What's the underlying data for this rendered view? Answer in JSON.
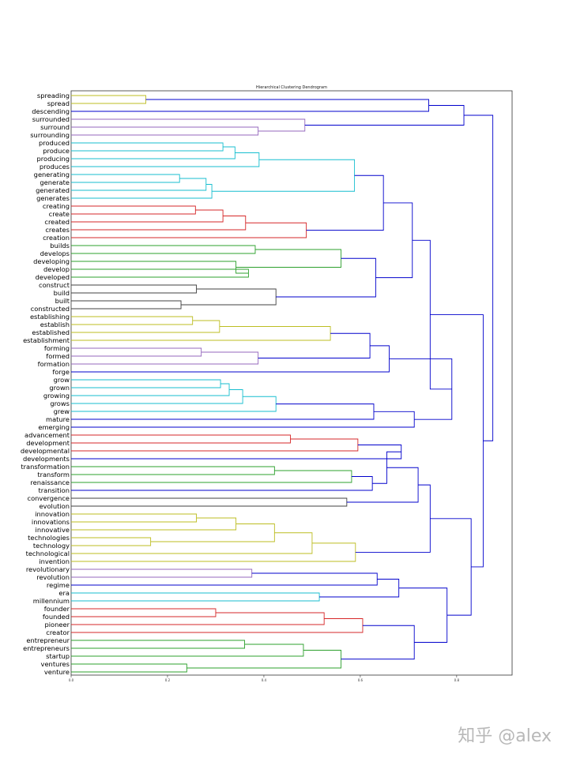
{
  "chart_data": {
    "type": "dendrogram",
    "title": "Hierarchical Clustering Dendrogram",
    "orientation": "left",
    "xlim": [
      0.0,
      0.915
    ],
    "xticks": [
      "0.0",
      "0.2",
      "0.4",
      "0.6",
      "0.8"
    ],
    "xtick_values": [
      0.0,
      0.2,
      0.4,
      0.6,
      0.8
    ],
    "leaves": [
      "spreading",
      "spread",
      "descending",
      "surrounded",
      "surround",
      "surrounding",
      "produced",
      "produce",
      "producing",
      "produces",
      "generating",
      "generate",
      "generated",
      "generates",
      "creating",
      "create",
      "created",
      "creates",
      "creation",
      "builds",
      "develops",
      "developing",
      "develop",
      "developed",
      "construct",
      "build",
      "built",
      "constructed",
      "establishing",
      "establish",
      "established",
      "establishment",
      "forming",
      "formed",
      "formation",
      "forge",
      "grow",
      "grown",
      "growing",
      "grows",
      "grew",
      "mature",
      "emerging",
      "advancement",
      "development",
      "developmental",
      "developments",
      "transformation",
      "transform",
      "renaissance",
      "transition",
      "convergence",
      "evolution",
      "innovation",
      "innovations",
      "innovative",
      "technologies",
      "technology",
      "technological",
      "invention",
      "revolutionary",
      "revolution",
      "regime",
      "era",
      "millennium",
      "founder",
      "founded",
      "pioneer",
      "creator",
      "entrepreneur",
      "entrepreneurs",
      "startup",
      "ventures",
      "venture"
    ],
    "merges": [
      {
        "a": "L:spreading",
        "b": "L:spread",
        "h": 0.155,
        "c": "#bcbd22"
      },
      {
        "a": "L:surround",
        "b": "L:surrounding",
        "h": 0.388,
        "c": "#9467bd"
      },
      {
        "a": "L:surrounded",
        "b": "M:1",
        "h": 0.485,
        "c": "#9467bd"
      },
      {
        "a": "L:produced",
        "b": "L:produce",
        "h": 0.315,
        "c": "#17becf"
      },
      {
        "a": "M:3",
        "b": "L:producing",
        "h": 0.34,
        "c": "#17becf"
      },
      {
        "a": "M:4",
        "b": "L:produces",
        "h": 0.39,
        "c": "#17becf"
      },
      {
        "a": "L:generating",
        "b": "L:generate",
        "h": 0.225,
        "c": "#17becf"
      },
      {
        "a": "M:6",
        "b": "L:generated",
        "h": 0.28,
        "c": "#17becf"
      },
      {
        "a": "M:7",
        "b": "L:generates",
        "h": 0.292,
        "c": "#17becf"
      },
      {
        "a": "M:5",
        "b": "M:8",
        "h": 0.588,
        "c": "#17becf"
      },
      {
        "a": "L:creating",
        "b": "L:create",
        "h": 0.258,
        "c": "#d62728"
      },
      {
        "a": "M:10",
        "b": "L:created",
        "h": 0.315,
        "c": "#d62728"
      },
      {
        "a": "M:11",
        "b": "L:creates",
        "h": 0.362,
        "c": "#d62728"
      },
      {
        "a": "M:12",
        "b": "L:creation",
        "h": 0.488,
        "c": "#d62728"
      },
      {
        "a": "M:9",
        "b": "M:13",
        "h": 0.648,
        "c": "#0000cc"
      },
      {
        "a": "L:develop",
        "b": "L:developed",
        "h": 0.368,
        "c": "#2ca02c"
      },
      {
        "a": "L:developing",
        "b": "M:15",
        "h": 0.342,
        "c": "#2ca02c"
      },
      {
        "a": "L:builds",
        "b": "L:develops",
        "h": 0.382,
        "c": "#2ca02c"
      },
      {
        "a": "M:17",
        "b": "M:16",
        "h": 0.56,
        "c": "#2ca02c"
      },
      {
        "a": "L:built",
        "b": "L:constructed",
        "h": 0.228,
        "c": "#404040"
      },
      {
        "a": "L:construct",
        "b": "L:build",
        "h": 0.26,
        "c": "#404040"
      },
      {
        "a": "M:20",
        "b": "M:19",
        "h": 0.425,
        "c": "#404040"
      },
      {
        "a": "M:18",
        "b": "M:21",
        "h": 0.632,
        "c": "#0000cc"
      },
      {
        "a": "M:14",
        "b": "M:22",
        "h": 0.708,
        "c": "#0000cc"
      },
      {
        "a": "L:establishing",
        "b": "L:establish",
        "h": 0.252,
        "c": "#bcbd22"
      },
      {
        "a": "M:24",
        "b": "L:established",
        "h": 0.308,
        "c": "#bcbd22"
      },
      {
        "a": "M:25",
        "b": "L:establishment",
        "h": 0.538,
        "c": "#bcbd22"
      },
      {
        "a": "L:forming",
        "b": "L:formed",
        "h": 0.27,
        "c": "#9467bd"
      },
      {
        "a": "M:27",
        "b": "L:formation",
        "h": 0.388,
        "c": "#9467bd"
      },
      {
        "a": "M:26",
        "b": "M:28",
        "h": 0.62,
        "c": "#0000cc"
      },
      {
        "a": "M:29",
        "b": "L:forge",
        "h": 0.66,
        "c": "#0000cc"
      },
      {
        "a": "L:grow",
        "b": "L:grown",
        "h": 0.31,
        "c": "#17becf"
      },
      {
        "a": "M:31",
        "b": "L:growing",
        "h": 0.328,
        "c": "#17becf"
      },
      {
        "a": "M:32",
        "b": "L:grows",
        "h": 0.356,
        "c": "#17becf"
      },
      {
        "a": "M:33",
        "b": "L:grew",
        "h": 0.425,
        "c": "#17becf"
      },
      {
        "a": "M:34",
        "b": "L:mature",
        "h": 0.628,
        "c": "#0000cc"
      },
      {
        "a": "M:35",
        "b": "L:emerging",
        "h": 0.712,
        "c": "#0000cc"
      },
      {
        "a": "M:30",
        "b": "M:36",
        "h": 0.79,
        "c": "#0000cc"
      },
      {
        "a": "M:23",
        "b": "M:37",
        "h": 0.745,
        "c": "#0000cc"
      },
      {
        "a": "L:advancement",
        "b": "L:development",
        "h": 0.455,
        "c": "#d62728"
      },
      {
        "a": "M:39",
        "b": "L:developmental",
        "h": 0.595,
        "c": "#d62728"
      },
      {
        "a": "M:40",
        "b": "L:developments",
        "h": 0.685,
        "c": "#0000cc"
      },
      {
        "a": "L:transformation",
        "b": "L:transform",
        "h": 0.422,
        "c": "#2ca02c"
      },
      {
        "a": "M:42",
        "b": "L:renaissance",
        "h": 0.582,
        "c": "#2ca02c"
      },
      {
        "a": "M:43",
        "b": "L:transition",
        "h": 0.625,
        "c": "#0000cc"
      },
      {
        "a": "M:44",
        "b": "M:41",
        "h": 0.655,
        "c": "#0000cc"
      },
      {
        "a": "L:convergence",
        "b": "L:evolution",
        "h": 0.572,
        "c": "#404040"
      },
      {
        "a": "M:45",
        "b": "M:46",
        "h": 0.72,
        "c": "#0000cc"
      },
      {
        "a": "L:innovation",
        "b": "L:innovations",
        "h": 0.26,
        "c": "#bcbd22"
      },
      {
        "a": "M:48",
        "b": "L:innovative",
        "h": 0.342,
        "c": "#bcbd22"
      },
      {
        "a": "L:technologies",
        "b": "L:technology",
        "h": 0.165,
        "c": "#bcbd22"
      },
      {
        "a": "M:49",
        "b": "M:50",
        "h": 0.422,
        "c": "#bcbd22"
      },
      {
        "a": "M:51",
        "b": "L:technological",
        "h": 0.5,
        "c": "#bcbd22"
      },
      {
        "a": "M:52",
        "b": "L:invention",
        "h": 0.59,
        "c": "#bcbd22"
      },
      {
        "a": "M:47",
        "b": "M:53",
        "h": 0.745,
        "c": "#0000cc"
      },
      {
        "a": "L:revolutionary",
        "b": "L:revolution",
        "h": 0.375,
        "c": "#9467bd"
      },
      {
        "a": "M:55",
        "b": "L:regime",
        "h": 0.635,
        "c": "#0000cc"
      },
      {
        "a": "L:era",
        "b": "L:millennium",
        "h": 0.515,
        "c": "#17becf"
      },
      {
        "a": "M:56",
        "b": "M:57",
        "h": 0.68,
        "c": "#0000cc"
      },
      {
        "a": "L:founder",
        "b": "L:founded",
        "h": 0.3,
        "c": "#d62728"
      },
      {
        "a": "M:59",
        "b": "L:pioneer",
        "h": 0.525,
        "c": "#d62728"
      },
      {
        "a": "M:60",
        "b": "L:creator",
        "h": 0.605,
        "c": "#d62728"
      },
      {
        "a": "L:entrepreneur",
        "b": "L:entrepreneurs",
        "h": 0.36,
        "c": "#2ca02c"
      },
      {
        "a": "M:62",
        "b": "L:startup",
        "h": 0.482,
        "c": "#2ca02c"
      },
      {
        "a": "L:ventures",
        "b": "L:venture",
        "h": 0.24,
        "c": "#2ca02c"
      },
      {
        "a": "M:63",
        "b": "M:64",
        "h": 0.56,
        "c": "#2ca02c"
      },
      {
        "a": "M:61",
        "b": "M:65",
        "h": 0.712,
        "c": "#0000cc"
      },
      {
        "a": "M:58",
        "b": "M:66",
        "h": 0.78,
        "c": "#0000cc"
      },
      {
        "a": "M:54",
        "b": "M:67",
        "h": 0.83,
        "c": "#0000cc"
      },
      {
        "a": "M:38",
        "b": "M:68",
        "h": 0.855,
        "c": "#0000cc"
      },
      {
        "a": "L:descending",
        "b": "M:0",
        "h": 0.742,
        "c": "#0000cc"
      },
      {
        "a": "M:70",
        "b": "M:2",
        "h": 0.815,
        "c": "#0000cc"
      },
      {
        "a": "M:71",
        "b": "M:69",
        "h": 0.875,
        "c": "#0000cc"
      }
    ]
  },
  "watermark": "知乎 @alex"
}
